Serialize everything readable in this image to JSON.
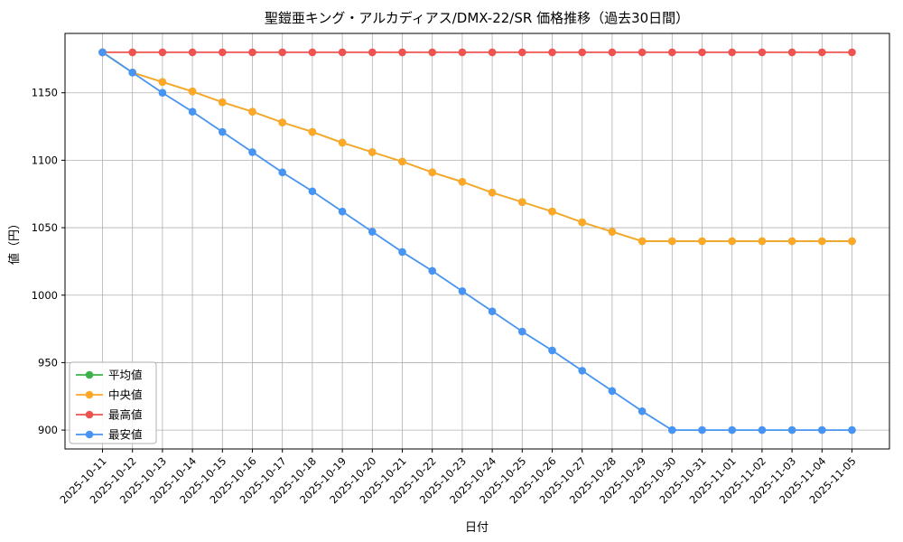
{
  "title": "聖鎧亜キング・アルカディアス/DMX-22/SR 価格推移（過去30日間）",
  "chart_data": {
    "type": "line",
    "title": "聖鎧亜キング・アルカディアス/DMX-22/SR 価格推移（過去30日間）",
    "xlabel": "日付",
    "ylabel": "値（円）",
    "x": [
      "2025-10-11",
      "2025-10-12",
      "2025-10-13",
      "2025-10-14",
      "2025-10-15",
      "2025-10-16",
      "2025-10-17",
      "2025-10-18",
      "2025-10-19",
      "2025-10-20",
      "2025-10-21",
      "2025-10-22",
      "2025-10-23",
      "2025-10-24",
      "2025-10-25",
      "2025-10-26",
      "2025-10-27",
      "2025-10-28",
      "2025-10-29",
      "2025-10-30",
      "2025-10-31",
      "2025-11-01",
      "2025-11-02",
      "2025-11-03",
      "2025-11-04",
      "2025-11-05"
    ],
    "series": [
      {
        "name": "平均値",
        "color": "#3eb24a",
        "values": [
          1180,
          1165,
          1158,
          1151,
          1143,
          1136,
          1128,
          1121,
          1113,
          1106,
          1099,
          1091,
          1084,
          1076,
          1069,
          1062,
          1054,
          1047,
          1040,
          1040,
          1040,
          1040,
          1040,
          1040,
          1040,
          1040
        ]
      },
      {
        "name": "中央値",
        "color": "#ffa726",
        "values": [
          1180,
          1165,
          1158,
          1151,
          1143,
          1136,
          1128,
          1121,
          1113,
          1106,
          1099,
          1091,
          1084,
          1076,
          1069,
          1062,
          1054,
          1047,
          1040,
          1040,
          1040,
          1040,
          1040,
          1040,
          1040,
          1040
        ]
      },
      {
        "name": "最高値",
        "color": "#ef5350",
        "values": [
          1180,
          1180,
          1180,
          1180,
          1180,
          1180,
          1180,
          1180,
          1180,
          1180,
          1180,
          1180,
          1180,
          1180,
          1180,
          1180,
          1180,
          1180,
          1180,
          1180,
          1180,
          1180,
          1180,
          1180,
          1180,
          1180
        ]
      },
      {
        "name": "最安値",
        "color": "#4794f2",
        "values": [
          1180,
          1165,
          1150,
          1136,
          1121,
          1106,
          1091,
          1077,
          1062,
          1047,
          1032,
          1018,
          1003,
          988,
          973,
          959,
          944,
          929,
          914,
          900,
          900,
          900,
          900,
          900,
          900,
          900
        ]
      }
    ],
    "ylim": [
      886,
      1194
    ],
    "yticks": [
      900,
      950,
      1000,
      1050,
      1100,
      1150
    ],
    "grid": true,
    "legend_position": "lower left",
    "legend_entries": [
      "平均値",
      "中央値",
      "最高値",
      "最安値"
    ]
  },
  "style": {
    "grid_color": "#b0b0b0",
    "axis_color": "#000000",
    "background": "#ffffff"
  }
}
